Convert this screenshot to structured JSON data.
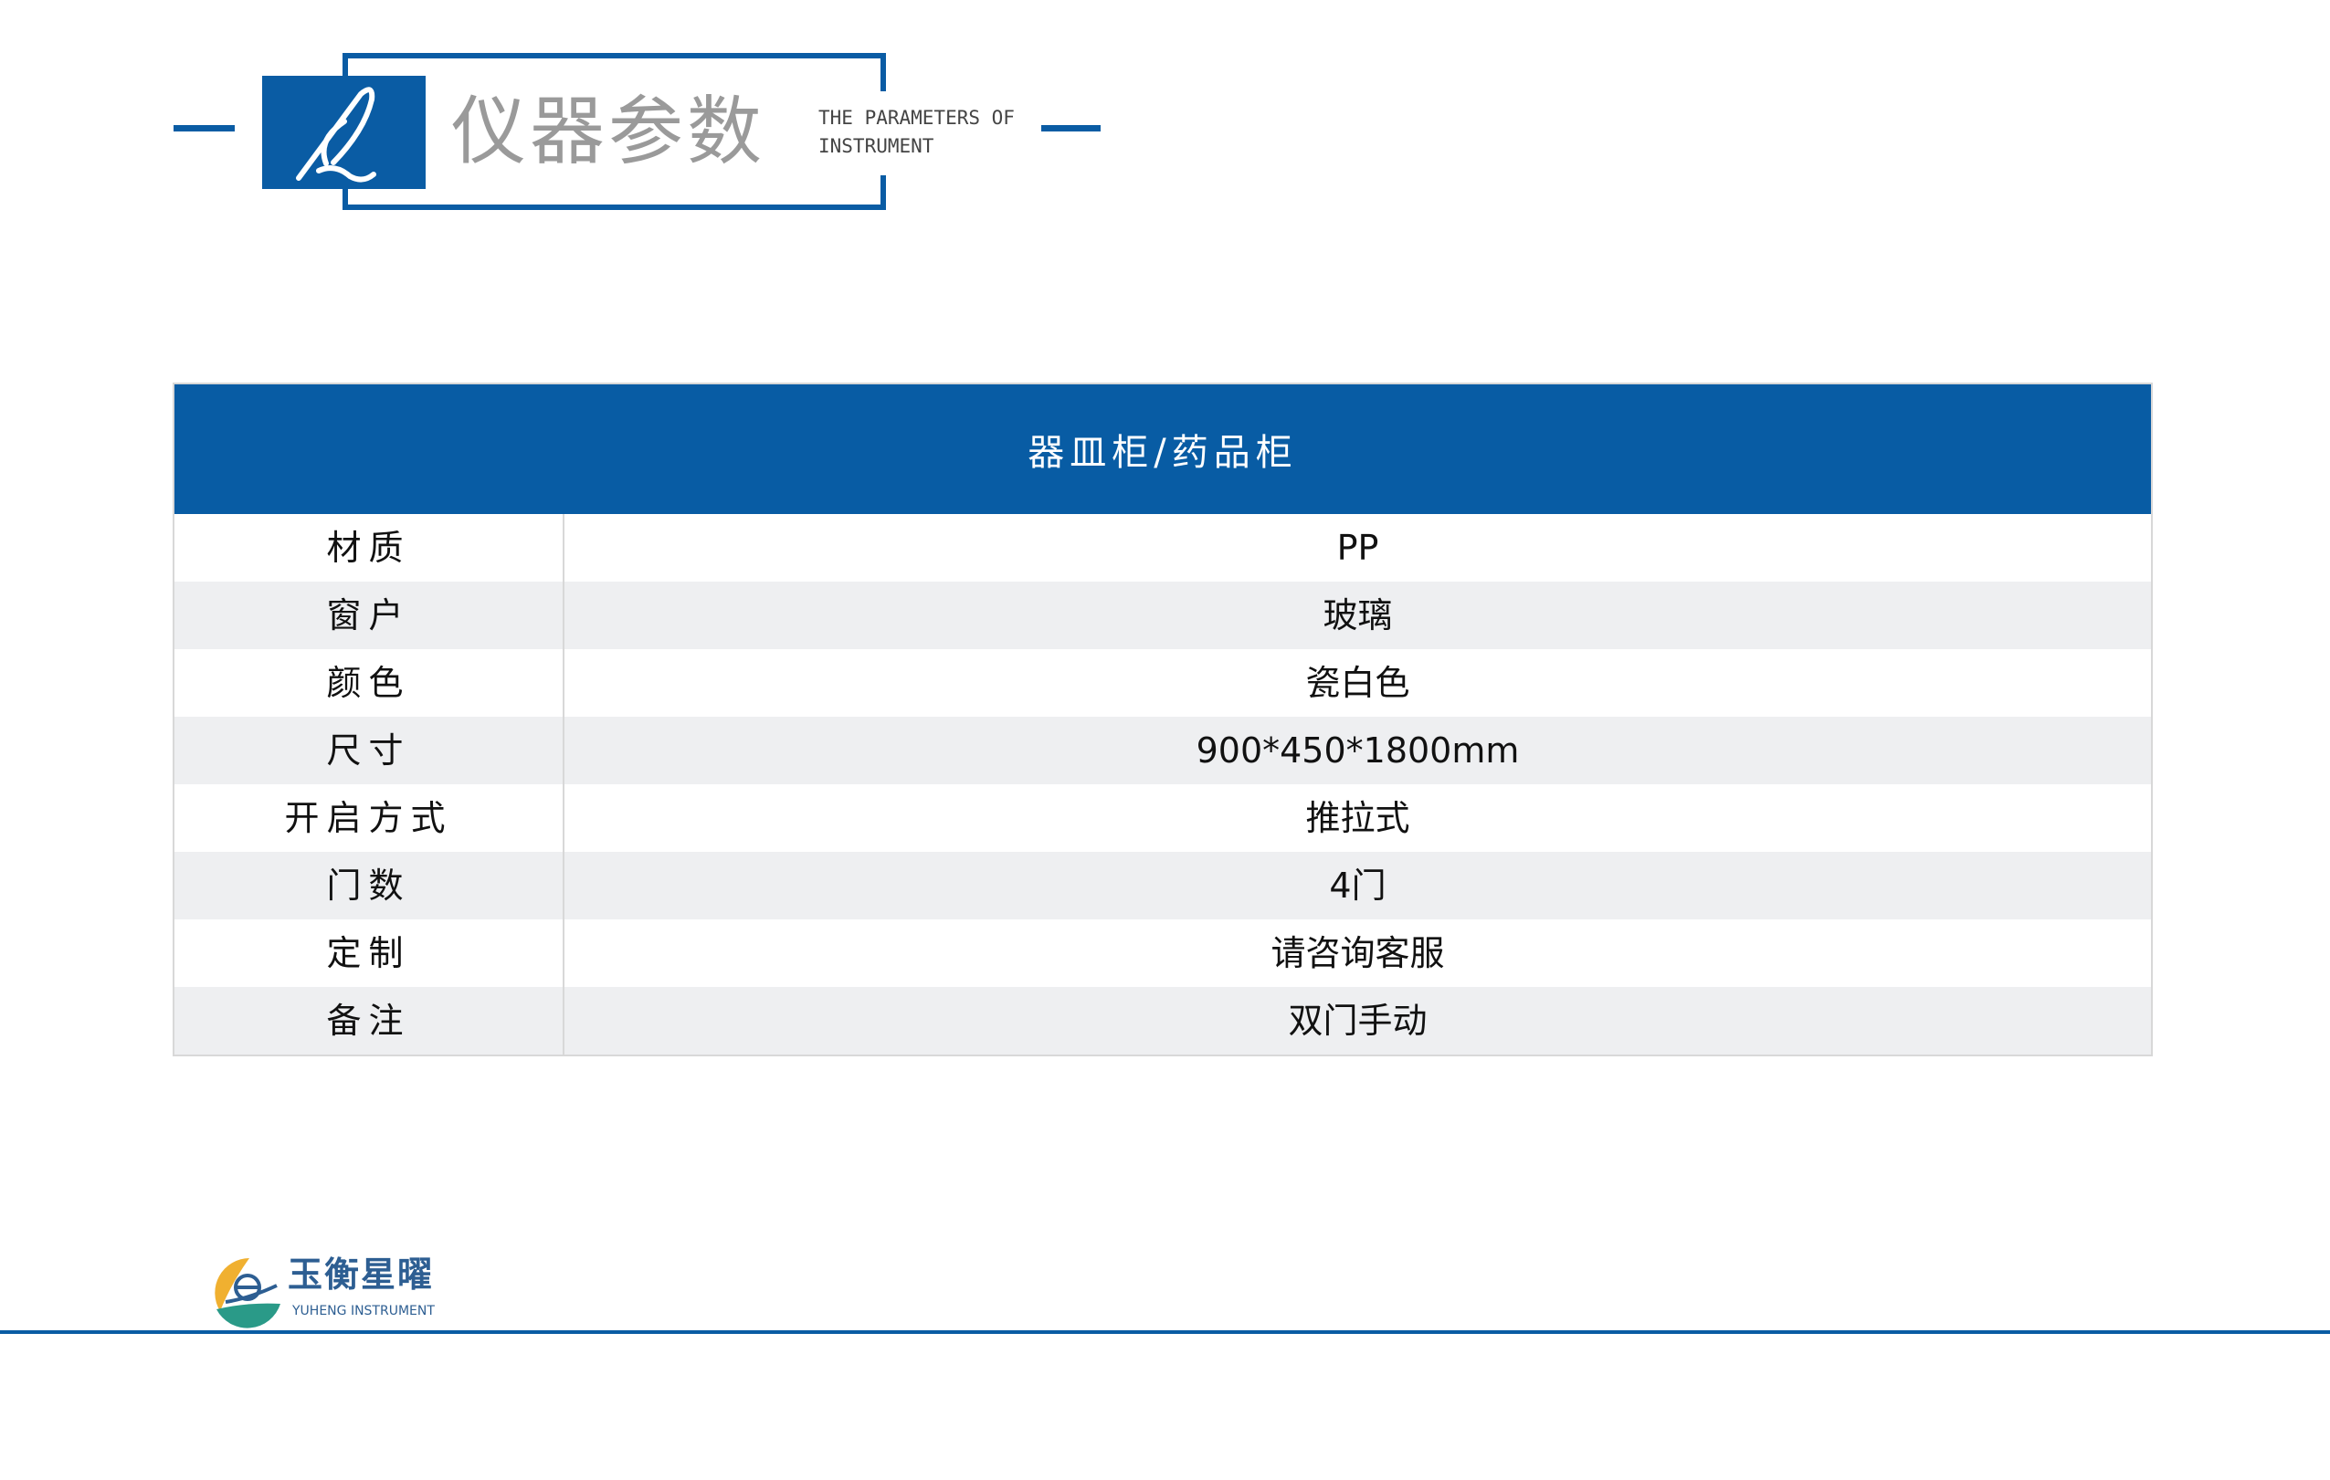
{
  "header": {
    "title": "仪器参数",
    "subtitle_line1": "THE PARAMETERS OF",
    "subtitle_line2": "INSTRUMENT",
    "icon": "quill-pen-icon"
  },
  "table": {
    "title": "器皿柜/药品柜",
    "rows": [
      {
        "label": "材质",
        "value": "PP"
      },
      {
        "label": "窗户",
        "value": "玻璃"
      },
      {
        "label": "颜色",
        "value": "瓷白色"
      },
      {
        "label": "尺寸",
        "value": "900*450*1800mm"
      },
      {
        "label": "开启方式",
        "value": "推拉式"
      },
      {
        "label": "门数",
        "value": "4门"
      },
      {
        "label": "定制",
        "value": "请咨询客服"
      },
      {
        "label": "备注",
        "value": "双门手动"
      }
    ]
  },
  "footer": {
    "brand": "玉衡星曜",
    "brand_en": "YUHENG INSTRUMENT"
  },
  "colors": {
    "accent": "#085ca4",
    "alt_row": "#eeeff1",
    "title_gray": "#9a9a9a"
  }
}
